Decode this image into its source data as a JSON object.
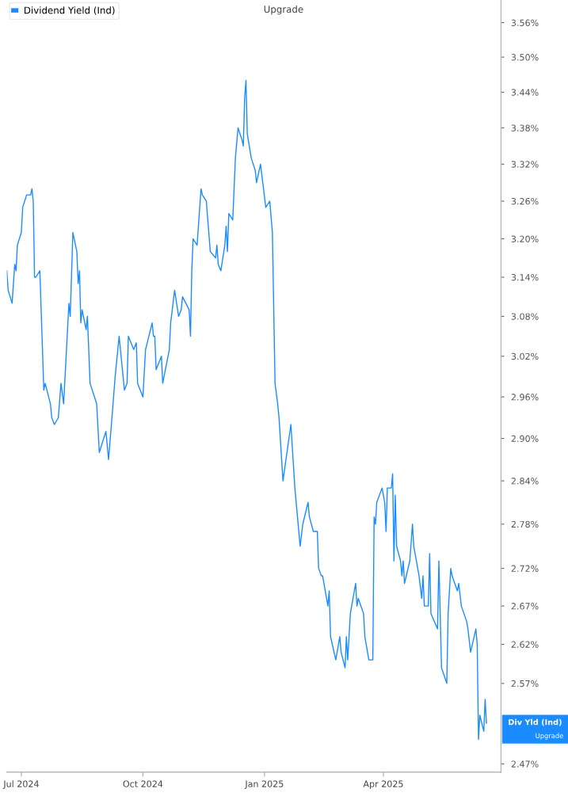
{
  "chart_data": {
    "type": "line",
    "log": "y",
    "grid": false,
    "legend": "top left",
    "marker": "none",
    "line_style": "solid",
    "xlim": [
      "2024-06-20",
      "2025-06-29"
    ],
    "xticks": [
      {
        "value": "2024-07-01",
        "label": "Jul 2024"
      },
      {
        "value": "2024-10-01",
        "label": "Oct 2024"
      },
      {
        "value": "2025-01-01",
        "label": "Jan 2025"
      },
      {
        "value": "2025-04-01",
        "label": "Apr 2025"
      }
    ],
    "ylim": [
      2.46,
      3.6
    ],
    "yticks": [
      {
        "value": 2.47,
        "label": "2.47%"
      },
      {
        "value": 2.57,
        "label": "2.57%"
      },
      {
        "value": 2.62,
        "label": "2.62%"
      },
      {
        "value": 2.67,
        "label": "2.67%"
      },
      {
        "value": 2.72,
        "label": "2.72%"
      },
      {
        "value": 2.78,
        "label": "2.78%"
      },
      {
        "value": 2.84,
        "label": "2.84%"
      },
      {
        "value": 2.9,
        "label": "2.90%"
      },
      {
        "value": 2.96,
        "label": "2.96%"
      },
      {
        "value": 3.02,
        "label": "3.02%"
      },
      {
        "value": 3.08,
        "label": "3.08%"
      },
      {
        "value": 3.14,
        "label": "3.14%"
      },
      {
        "value": 3.2,
        "label": "3.20%"
      },
      {
        "value": 3.26,
        "label": "3.26%"
      },
      {
        "value": 3.32,
        "label": "3.32%"
      },
      {
        "value": 3.38,
        "label": "3.38%"
      },
      {
        "value": 3.44,
        "label": "3.44%"
      },
      {
        "value": 3.5,
        "label": "3.50%"
      },
      {
        "value": 3.56,
        "label": "3.56%"
      }
    ],
    "annotations": [
      "Upgrade",
      "Div Yld (Ind)",
      "Upgrade"
    ],
    "series": [
      {
        "name": "Dividend Yield (Ind)",
        "color": "#1a8cff",
        "x": [
          "2024-06-20",
          "2024-06-21",
          "2024-06-24",
          "2024-06-26",
          "2024-06-27",
          "2024-06-28",
          "2024-07-01",
          "2024-07-02",
          "2024-07-05",
          "2024-07-08",
          "2024-07-09",
          "2024-07-10",
          "2024-07-11",
          "2024-07-12",
          "2024-07-15",
          "2024-07-18",
          "2024-07-19",
          "2024-07-23",
          "2024-07-24",
          "2024-07-26",
          "2024-07-29",
          "2024-07-31",
          "2024-08-02",
          "2024-08-06",
          "2024-08-07",
          "2024-08-09",
          "2024-08-12",
          "2024-08-13",
          "2024-08-14",
          "2024-08-15",
          "2024-08-16",
          "2024-08-19",
          "2024-08-20",
          "2024-08-22",
          "2024-08-27",
          "2024-08-29",
          "2024-09-03",
          "2024-09-05",
          "2024-09-08",
          "2024-09-10",
          "2024-09-13",
          "2024-09-17",
          "2024-09-19",
          "2024-09-20",
          "2024-09-24",
          "2024-09-26",
          "2024-09-27",
          "2024-10-01",
          "2024-10-03",
          "2024-10-08",
          "2024-10-09",
          "2024-10-10",
          "2024-10-11",
          "2024-10-15",
          "2024-10-16",
          "2024-10-21",
          "2024-10-22",
          "2024-10-25",
          "2024-10-28",
          "2024-10-30",
          "2024-10-31",
          "2024-11-05",
          "2024-11-06",
          "2024-11-07",
          "2024-11-08",
          "2024-11-11",
          "2024-11-14",
          "2024-11-15",
          "2024-11-18",
          "2024-11-21",
          "2024-11-25",
          "2024-11-26",
          "2024-11-27",
          "2024-11-29",
          "2024-12-02",
          "2024-12-03",
          "2024-12-04",
          "2024-12-05",
          "2024-12-08",
          "2024-12-10",
          "2024-12-12",
          "2024-12-15",
          "2024-12-16",
          "2024-12-17",
          "2024-12-18",
          "2024-12-19",
          "2024-12-22",
          "2024-12-25",
          "2024-12-26",
          "2024-12-29",
          "2025-01-02",
          "2025-01-05",
          "2025-01-07",
          "2025-01-09",
          "2025-01-11",
          "2025-01-12",
          "2025-01-15",
          "2025-01-21",
          "2025-01-24",
          "2025-01-28",
          "2025-01-30",
          "2025-02-03",
          "2025-02-04",
          "2025-02-07",
          "2025-02-10",
          "2025-02-11",
          "2025-02-13",
          "2025-02-14",
          "2025-02-18",
          "2025-02-19",
          "2025-02-20",
          "2025-02-24",
          "2025-02-27",
          "2025-02-28",
          "2025-03-03",
          "2025-03-04",
          "2025-03-05",
          "2025-03-07",
          "2025-03-11",
          "2025-03-12",
          "2025-03-13",
          "2025-03-17",
          "2025-03-18",
          "2025-03-21",
          "2025-03-24",
          "2025-03-25",
          "2025-03-26",
          "2025-03-27",
          "2025-03-31",
          "2025-04-02",
          "2025-04-03",
          "2025-04-04",
          "2025-04-07",
          "2025-04-08",
          "2025-04-09",
          "2025-04-10",
          "2025-04-11",
          "2025-04-14",
          "2025-04-15",
          "2025-04-16",
          "2025-04-17",
          "2025-04-21",
          "2025-04-23",
          "2025-04-24",
          "2025-04-28",
          "2025-04-30",
          "2025-05-01",
          "2025-05-02",
          "2025-05-05",
          "2025-05-06",
          "2025-05-07",
          "2025-05-12",
          "2025-05-13",
          "2025-05-15",
          "2025-05-19",
          "2025-05-20",
          "2025-05-22",
          "2025-05-23",
          "2025-05-27",
          "2025-05-28",
          "2025-05-30",
          "2025-06-03",
          "2025-06-04",
          "2025-06-06",
          "2025-06-10",
          "2025-06-11",
          "2025-06-12",
          "2025-06-13",
          "2025-06-16",
          "2025-06-17",
          "2025-06-18"
        ],
        "values": [
          3.15,
          3.12,
          3.1,
          3.16,
          3.15,
          3.19,
          3.21,
          3.25,
          3.27,
          3.27,
          3.28,
          3.26,
          3.14,
          3.14,
          3.15,
          2.97,
          2.98,
          2.95,
          2.93,
          2.92,
          2.93,
          2.98,
          2.95,
          3.1,
          3.08,
          3.21,
          3.18,
          3.13,
          3.15,
          3.07,
          3.09,
          3.06,
          3.08,
          2.98,
          2.95,
          2.88,
          2.91,
          2.87,
          2.94,
          2.99,
          3.05,
          2.97,
          2.98,
          3.05,
          3.03,
          3.04,
          2.98,
          2.96,
          3.03,
          3.07,
          3.05,
          3.05,
          3.0,
          3.02,
          2.98,
          3.03,
          3.07,
          3.12,
          3.08,
          3.09,
          3.11,
          3.09,
          3.05,
          3.15,
          3.2,
          3.19,
          3.28,
          3.27,
          3.26,
          3.18,
          3.17,
          3.19,
          3.16,
          3.15,
          3.19,
          3.22,
          3.18,
          3.24,
          3.23,
          3.33,
          3.38,
          3.36,
          3.35,
          3.43,
          3.46,
          3.37,
          3.33,
          3.31,
          3.29,
          3.32,
          3.25,
          3.26,
          3.21,
          2.98,
          2.95,
          2.93,
          2.84,
          2.92,
          2.83,
          2.75,
          2.78,
          2.81,
          2.79,
          2.77,
          2.77,
          2.72,
          2.71,
          2.71,
          2.67,
          2.69,
          2.63,
          2.6,
          2.63,
          2.61,
          2.59,
          2.63,
          2.6,
          2.66,
          2.7,
          2.67,
          2.68,
          2.66,
          2.63,
          2.6,
          2.6,
          2.79,
          2.78,
          2.81,
          2.83,
          2.81,
          2.77,
          2.83,
          2.83,
          2.85,
          2.73,
          2.82,
          2.75,
          2.73,
          2.71,
          2.73,
          2.7,
          2.73,
          2.78,
          2.75,
          2.71,
          2.68,
          2.71,
          2.67,
          2.67,
          2.74,
          2.66,
          2.64,
          2.73,
          2.59,
          2.57,
          2.66,
          2.72,
          2.71,
          2.69,
          2.7,
          2.67,
          2.65,
          2.64,
          2.61,
          2.64,
          2.62,
          2.5,
          2.53,
          2.51,
          2.55,
          2.52
        ]
      }
    ]
  }
}
